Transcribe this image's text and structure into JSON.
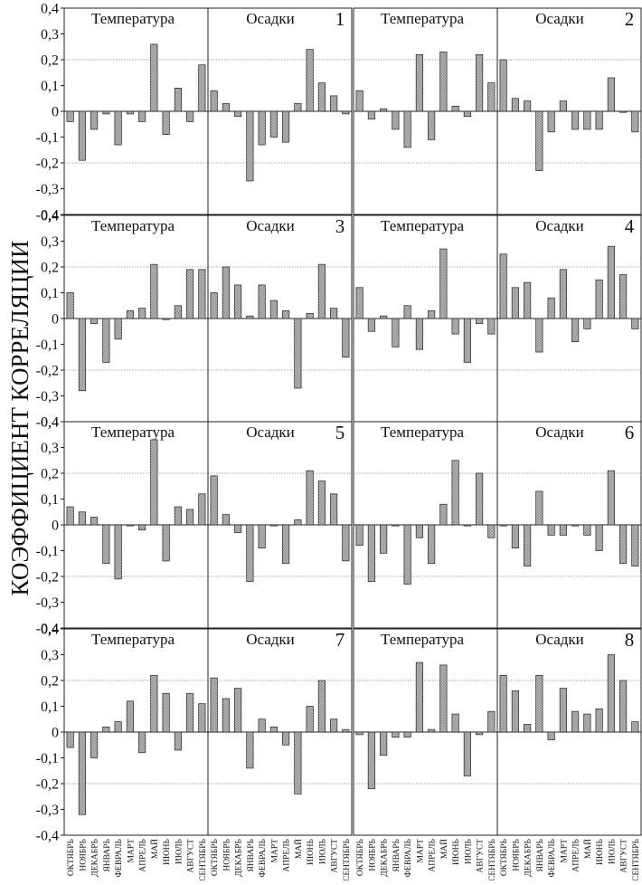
{
  "figure": {
    "y_axis_title": "КОЭФФИЦИЕНТ КОРРЕЛЯЦИИ",
    "y_ticks": [
      "0,4",
      "0,3",
      "0,2",
      "0,1",
      "0",
      "-0,1",
      "-0,2",
      "-0,3",
      "-0,4"
    ],
    "section_titles": {
      "temperature": "Температура",
      "precipitation": "Осадки"
    },
    "months": [
      "ОКТЯБРЬ",
      "НОЯБРЬ",
      "ДЕКАБРЬ",
      "ЯНВАРЬ",
      "ФЕВРАЛЬ",
      "МАРТ",
      "АПРЕЛЬ",
      "МАЙ",
      "ИЮНЬ",
      "ИЮЛЬ",
      "АВГУСТ",
      "СЕНТЯБРЬ"
    ],
    "bar_fill": "#b8b8b8",
    "bar_stroke": "#222222",
    "grid_color": "#888888"
  },
  "chart_data": [
    {
      "type": "bar",
      "panel_label": "1",
      "ylim": [
        -0.4,
        0.4
      ],
      "grid": true,
      "categories": [
        "ОКТЯБРЬ",
        "НОЯБРЬ",
        "ДЕКАБРЬ",
        "ЯНВАРЬ",
        "ФЕВРАЛЬ",
        "МАРТ",
        "АПРЕЛЬ",
        "МАЙ",
        "ИЮНЬ",
        "ИЮЛЬ",
        "АВГУСТ",
        "СЕНТЯБРЬ"
      ],
      "series": [
        {
          "name": "Температура",
          "values": [
            -0.04,
            -0.19,
            -0.07,
            -0.01,
            -0.13,
            -0.01,
            -0.04,
            0.26,
            -0.09,
            0.09,
            -0.04,
            0.18
          ]
        },
        {
          "name": "Осадки",
          "values": [
            0.08,
            0.03,
            -0.02,
            -0.27,
            -0.13,
            -0.1,
            -0.12,
            0.03,
            0.24,
            0.11,
            0.06,
            -0.01
          ]
        }
      ]
    },
    {
      "type": "bar",
      "panel_label": "2",
      "ylim": [
        -0.4,
        0.4
      ],
      "grid": true,
      "categories": [
        "ОКТЯБРЬ",
        "НОЯБРЬ",
        "ДЕКАБРЬ",
        "ЯНВАРЬ",
        "ФЕВРАЛЬ",
        "МАРТ",
        "АПРЕЛЬ",
        "МАЙ",
        "ИЮНЬ",
        "ИЮЛЬ",
        "АВГУСТ",
        "СЕНТЯБРЬ"
      ],
      "series": [
        {
          "name": "Температура",
          "values": [
            0.08,
            -0.03,
            0.01,
            -0.07,
            -0.14,
            0.22,
            -0.11,
            0.23,
            0.02,
            -0.02,
            0.22,
            0.11
          ]
        },
        {
          "name": "Осадки",
          "values": [
            0.2,
            0.05,
            0.04,
            -0.23,
            -0.08,
            0.04,
            -0.07,
            -0.07,
            -0.07,
            0.13,
            0.0,
            -0.08
          ]
        }
      ]
    },
    {
      "type": "bar",
      "panel_label": "3",
      "ylim": [
        -0.4,
        0.4
      ],
      "grid": true,
      "categories": [
        "ОКТЯБРЬ",
        "НОЯБРЬ",
        "ДЕКАБРЬ",
        "ЯНВАРЬ",
        "ФЕВРАЛЬ",
        "МАРТ",
        "АПРЕЛЬ",
        "МАЙ",
        "ИЮНЬ",
        "ИЮЛЬ",
        "АВГУСТ",
        "СЕНТЯБРЬ"
      ],
      "series": [
        {
          "name": "Температура",
          "values": [
            0.1,
            -0.28,
            -0.02,
            -0.17,
            -0.08,
            0.03,
            0.04,
            0.21,
            0.0,
            0.05,
            0.19,
            0.19
          ]
        },
        {
          "name": "Осадки",
          "values": [
            0.1,
            0.2,
            0.13,
            0.01,
            0.13,
            0.07,
            0.03,
            -0.27,
            0.02,
            0.21,
            0.04,
            -0.15
          ]
        }
      ]
    },
    {
      "type": "bar",
      "panel_label": "4",
      "ylim": [
        -0.4,
        0.4
      ],
      "grid": true,
      "categories": [
        "ОКТЯБРЬ",
        "НОЯБРЬ",
        "ДЕКАБРЬ",
        "ЯНВАРЬ",
        "ФЕВРАЛЬ",
        "МАРТ",
        "АПРЕЛЬ",
        "МАЙ",
        "ИЮНЬ",
        "ИЮЛЬ",
        "АВГУСТ",
        "СЕНТЯБРЬ"
      ],
      "series": [
        {
          "name": "Температура",
          "values": [
            0.12,
            -0.05,
            0.01,
            -0.11,
            0.05,
            -0.12,
            0.03,
            0.27,
            -0.06,
            -0.17,
            -0.02,
            -0.06
          ]
        },
        {
          "name": "Осадки",
          "values": [
            0.25,
            0.12,
            0.14,
            -0.13,
            0.08,
            0.19,
            -0.09,
            -0.04,
            0.15,
            0.28,
            0.17,
            -0.04
          ]
        }
      ]
    },
    {
      "type": "bar",
      "panel_label": "5",
      "ylim": [
        -0.4,
        0.4
      ],
      "grid": true,
      "categories": [
        "ОКТЯБРЬ",
        "НОЯБРЬ",
        "ДЕКАБРЬ",
        "ЯНВАРЬ",
        "ФЕВРАЛЬ",
        "МАРТ",
        "АПРЕЛЬ",
        "МАЙ",
        "ИЮНЬ",
        "ИЮЛЬ",
        "АВГУСТ",
        "СЕНТЯБРЬ"
      ],
      "series": [
        {
          "name": "Температура",
          "values": [
            0.07,
            0.05,
            0.03,
            -0.15,
            -0.21,
            0.0,
            -0.02,
            0.33,
            -0.14,
            0.07,
            0.06,
            0.12
          ]
        },
        {
          "name": "Осадки",
          "values": [
            0.19,
            0.04,
            -0.03,
            -0.22,
            -0.09,
            0.0,
            -0.15,
            0.02,
            0.21,
            0.17,
            0.12,
            -0.14
          ]
        }
      ]
    },
    {
      "type": "bar",
      "panel_label": "6",
      "ylim": [
        -0.4,
        0.4
      ],
      "grid": true,
      "categories": [
        "ОКТЯБРЬ",
        "НОЯБРЬ",
        "ДЕКАБРЬ",
        "ЯНВАРЬ",
        "ФЕВРАЛЬ",
        "МАРТ",
        "АПРЕЛЬ",
        "МАЙ",
        "ИЮНЬ",
        "ИЮЛЬ",
        "АВГУСТ",
        "СЕНТЯБРЬ"
      ],
      "series": [
        {
          "name": "Температура",
          "values": [
            -0.08,
            -0.22,
            -0.11,
            0.0,
            -0.23,
            -0.05,
            -0.15,
            0.08,
            0.25,
            0.0,
            0.2,
            -0.05
          ]
        },
        {
          "name": "Осадки",
          "values": [
            0.0,
            -0.09,
            -0.16,
            0.13,
            -0.04,
            -0.04,
            0.0,
            -0.04,
            -0.1,
            0.21,
            -0.15,
            -0.16
          ]
        }
      ]
    },
    {
      "type": "bar",
      "panel_label": "7",
      "ylim": [
        -0.4,
        0.4
      ],
      "grid": true,
      "categories": [
        "ОКТЯБРЬ",
        "НОЯБРЬ",
        "ДЕКАБРЬ",
        "ЯНВАРЬ",
        "ФЕВРАЛЬ",
        "МАРТ",
        "АПРЕЛЬ",
        "МАЙ",
        "ИЮНЬ",
        "ИЮЛЬ",
        "АВГУСТ",
        "СЕНТЯБРЬ"
      ],
      "series": [
        {
          "name": "Температура",
          "values": [
            -0.06,
            -0.32,
            -0.1,
            0.02,
            0.04,
            0.12,
            -0.08,
            0.22,
            0.15,
            -0.07,
            0.15,
            0.11
          ]
        },
        {
          "name": "Осадки",
          "values": [
            0.21,
            0.13,
            0.17,
            -0.14,
            0.05,
            0.02,
            -0.05,
            -0.24,
            0.1,
            0.2,
            0.05,
            0.01
          ]
        }
      ]
    },
    {
      "type": "bar",
      "panel_label": "8",
      "ylim": [
        -0.4,
        0.4
      ],
      "grid": true,
      "categories": [
        "ОКТЯБРЬ",
        "НОЯБРЬ",
        "ДЕКАБРЬ",
        "ЯНВАРЬ",
        "ФЕВРАЛЬ",
        "МАРТ",
        "АПРЕЛЬ",
        "МАЙ",
        "ИЮНЬ",
        "ИЮЛЬ",
        "АВГУСТ",
        "СЕНТЯБРЬ"
      ],
      "series": [
        {
          "name": "Температура",
          "values": [
            -0.01,
            -0.22,
            -0.09,
            -0.02,
            -0.02,
            0.27,
            0.01,
            0.26,
            0.07,
            -0.17,
            -0.01,
            0.08
          ]
        },
        {
          "name": "Осадки",
          "values": [
            0.22,
            0.16,
            0.03,
            0.22,
            -0.03,
            0.17,
            0.08,
            0.07,
            0.09,
            0.3,
            0.2,
            0.04
          ]
        }
      ]
    }
  ]
}
